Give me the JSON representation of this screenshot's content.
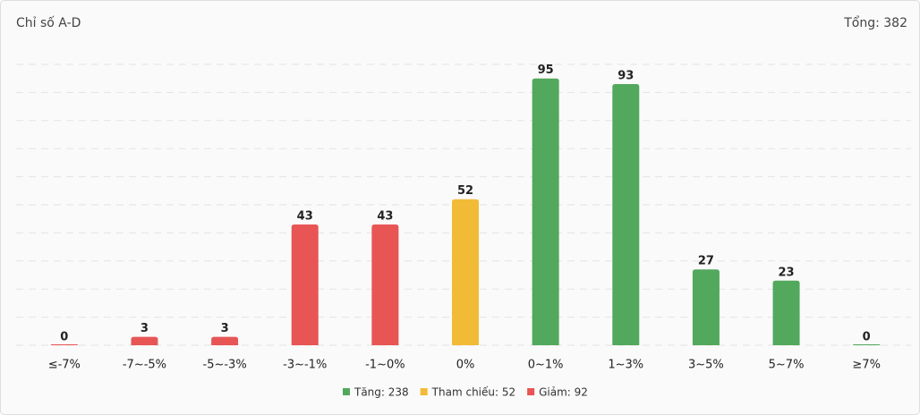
{
  "header": {
    "title": "Chỉ số A-D",
    "total": "Tổng: 382"
  },
  "chart_data": {
    "type": "bar",
    "categories": [
      "≤-7%",
      "-7~-5%",
      "-5~-3%",
      "-3~-1%",
      "-1~0%",
      "0%",
      "0~1%",
      "1~3%",
      "3~5%",
      "5~7%",
      "≥7%"
    ],
    "values": [
      0,
      3,
      3,
      43,
      43,
      52,
      95,
      93,
      27,
      23,
      0
    ],
    "colors": [
      "#e85555",
      "#e85555",
      "#e85555",
      "#e85555",
      "#e85555",
      "#f2bb37",
      "#52a85c",
      "#52a85c",
      "#52a85c",
      "#52a85c",
      "#52a85c"
    ],
    "ylim": [
      0,
      100
    ],
    "yticks": [
      0,
      10,
      20,
      30,
      40,
      50,
      60,
      70,
      80,
      90,
      100
    ],
    "grid": true,
    "legend": [
      {
        "label": "Tăng: 238",
        "color": "#52a85c"
      },
      {
        "label": "Tham chiếu: 52",
        "color": "#f2bb37"
      },
      {
        "label": "Giảm: 92",
        "color": "#e85555"
      }
    ]
  }
}
